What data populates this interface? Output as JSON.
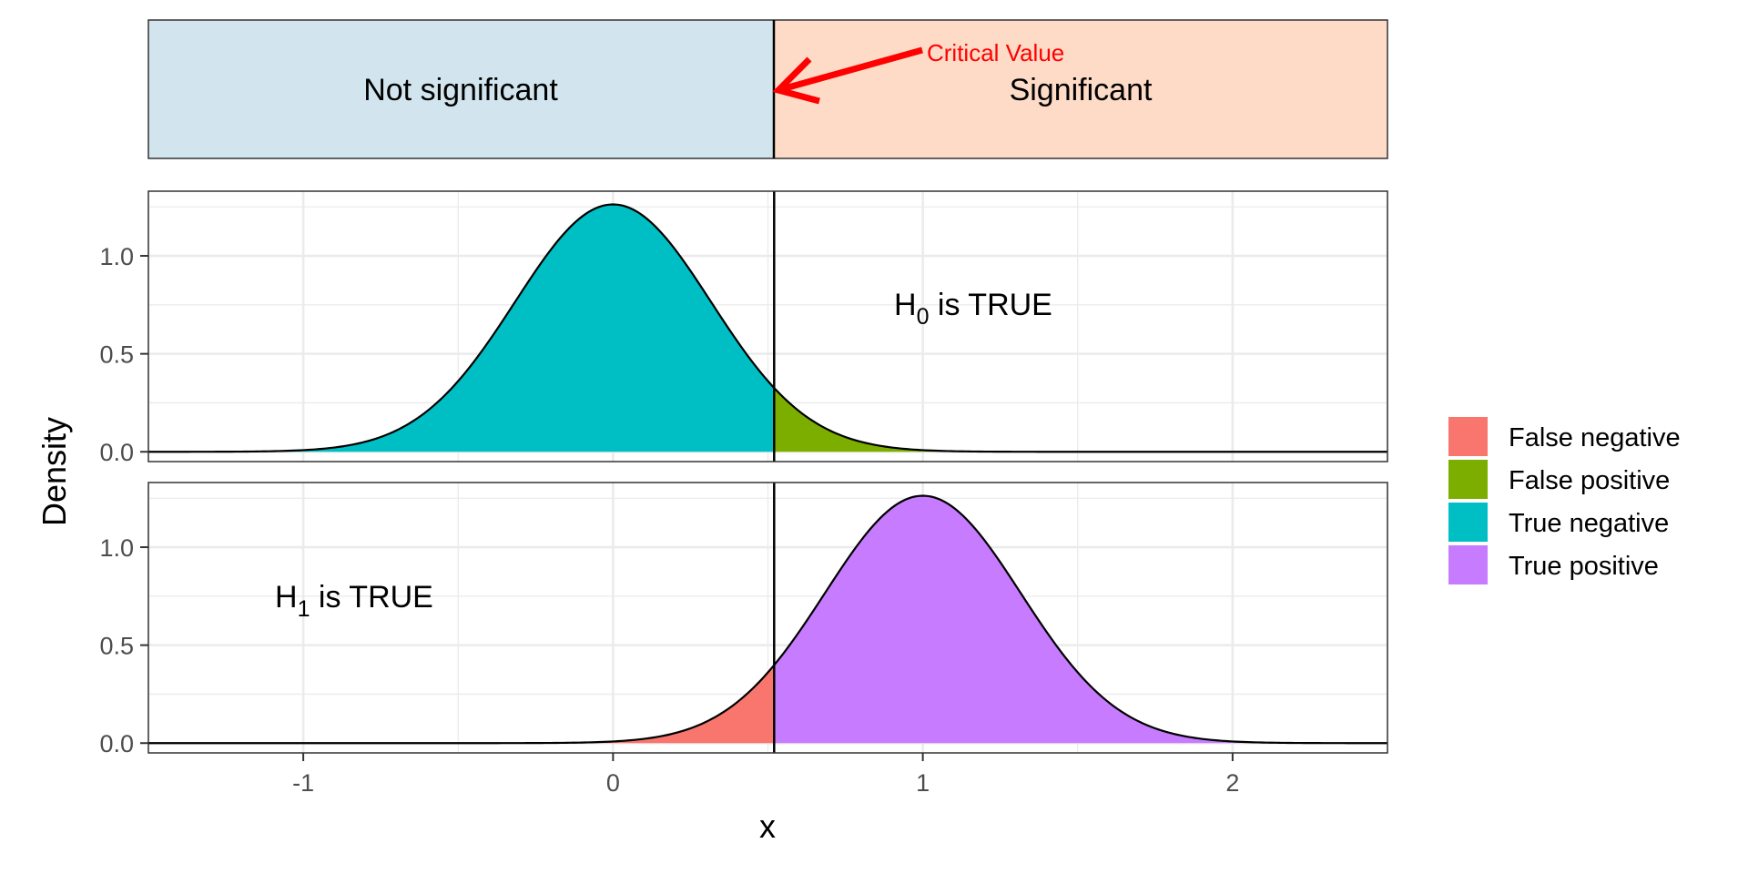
{
  "chart_data": {
    "type": "area",
    "x_range": [
      -1.5,
      2.5
    ],
    "x_ticks": [
      -1,
      0,
      1,
      2
    ],
    "x_tick_labels": [
      "-1",
      "0",
      "1",
      "2"
    ],
    "y_ticks": [
      0.0,
      0.5,
      1.0
    ],
    "y_tick_labels": [
      "0.0",
      "0.5",
      "1.0"
    ],
    "ylim": [
      -0.05,
      1.33
    ],
    "xlabel": "x",
    "ylabel": "Density",
    "critical_value": 0.52,
    "distributions": {
      "sd": 0.316,
      "h0_mean": 0,
      "h1_mean": 1
    },
    "regions": {
      "left_label": "Not significant",
      "right_label": "Significant",
      "left_color": "#d2e5ef",
      "right_color": "#fedbc7"
    },
    "annotation": {
      "text": "Critical Value",
      "color": "#ff0000"
    },
    "panels": [
      {
        "hypothesis": "H",
        "subscript": "0",
        "suffix": " is TRUE"
      },
      {
        "hypothesis": "H",
        "subscript": "1",
        "suffix": " is TRUE"
      }
    ],
    "legend": {
      "position": "right",
      "items": [
        {
          "label": "False negative",
          "color": "#f8766d"
        },
        {
          "label": "False positive",
          "color": "#7cae00"
        },
        {
          "label": "True negative",
          "color": "#00bfc4"
        },
        {
          "label": "True positive",
          "color": "#c77cff"
        }
      ]
    },
    "grid": true
  }
}
